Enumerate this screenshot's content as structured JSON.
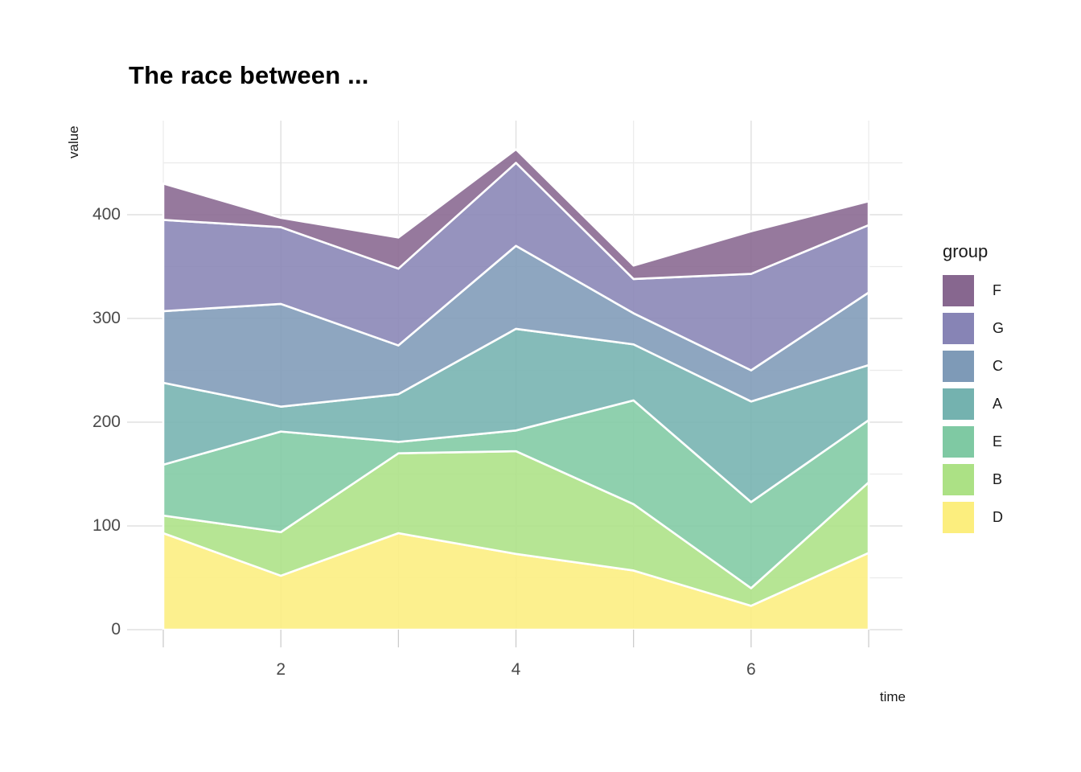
{
  "title": "The race between ...",
  "axes": {
    "x_title": "time",
    "y_title": "value",
    "x_ticks": [
      2,
      4,
      6
    ],
    "y_ticks": [
      0,
      100,
      200,
      300,
      400
    ]
  },
  "legend": {
    "title": "group",
    "items": [
      "F",
      "G",
      "C",
      "A",
      "E",
      "B",
      "D"
    ]
  },
  "chart_data": {
    "type": "area",
    "stacked": true,
    "title": "The race between ...",
    "xlabel": "time",
    "ylabel": "value",
    "x": [
      1,
      2,
      3,
      4,
      5,
      6,
      7
    ],
    "xlim": [
      1,
      7
    ],
    "ylim": [
      0,
      490
    ],
    "grid": true,
    "legend_position": "right",
    "stack_order_bottom_to_top": [
      "D",
      "B",
      "E",
      "A",
      "C",
      "G",
      "F"
    ],
    "series": [
      {
        "name": "D",
        "color": "#fcee7e",
        "values": [
          93,
          52,
          93,
          73,
          57,
          23,
          74
        ]
      },
      {
        "name": "B",
        "color": "#ace185",
        "values": [
          17,
          42,
          77,
          99,
          64,
          17,
          68
        ]
      },
      {
        "name": "E",
        "color": "#7fc9a3",
        "values": [
          49,
          97,
          11,
          20,
          100,
          83,
          60
        ]
      },
      {
        "name": "A",
        "color": "#74b2af",
        "values": [
          79,
          24,
          46,
          98,
          54,
          97,
          53
        ]
      },
      {
        "name": "C",
        "color": "#7e9ab7",
        "values": [
          69,
          99,
          47,
          80,
          30,
          30,
          70
        ]
      },
      {
        "name": "G",
        "color": "#8784b5",
        "values": [
          88,
          74,
          74,
          80,
          33,
          93,
          65
        ]
      },
      {
        "name": "F",
        "color": "#87678f",
        "values": [
          35,
          9,
          30,
          13,
          13,
          41,
          23
        ]
      }
    ]
  },
  "style_colors": {
    "grid_major": "#e1e1e1",
    "grid_minor": "#ebebeb",
    "axis_tick": "#c9c9c9",
    "axis_text": "#4a4a4a",
    "separator": "#ffffff"
  }
}
